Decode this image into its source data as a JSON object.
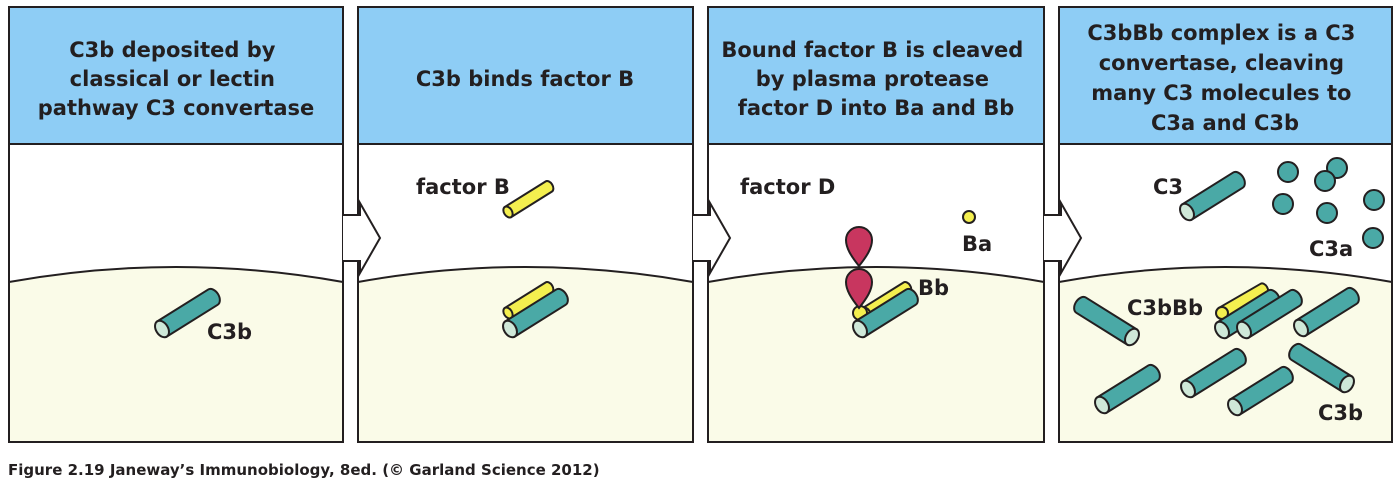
{
  "panels": [
    {
      "header": [
        "C3b deposited by",
        "classical or lectin",
        "pathway C3 convertase"
      ],
      "labels": {
        "c3b": "C3b"
      }
    },
    {
      "header": [
        "C3b binds factor B"
      ],
      "labels": {
        "factor_b": "factor B"
      }
    },
    {
      "header": [
        "Bound factor B is cleaved",
        "by plasma protease",
        "factor D into Ba and Bb"
      ],
      "labels": {
        "factor_d": "factor D",
        "ba": "Ba",
        "bb": "Bb"
      }
    },
    {
      "header": [
        "C3bBb complex is a C3",
        "convertase, cleaving",
        "many C3 molecules to",
        "C3a and C3b"
      ],
      "labels": {
        "c3": "C3",
        "c3a": "C3a",
        "c3bbb": "C3bBb",
        "c3b": "C3b"
      }
    }
  ],
  "caption": "Figure 2.19  Janeway’s Immunobiology, 8ed. (© Garland Science 2012)",
  "colors": {
    "header_bg": "#8ecdf5",
    "membrane_bg": "#fafbe8",
    "teal": "#4aa9a6",
    "teal_end": "#cfe8d8",
    "yellow": "#f4ef4f",
    "factor_d": "#c8365f",
    "outline": "#231f20"
  }
}
